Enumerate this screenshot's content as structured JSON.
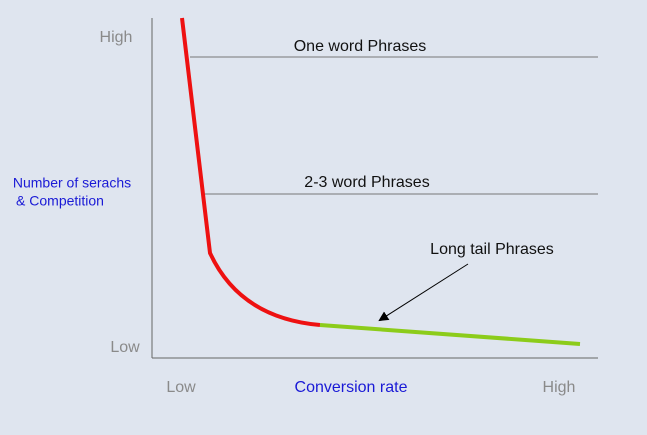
{
  "axes": {
    "y_label_line1": "Number of serachs",
    "y_label_line2": "& Competition",
    "y_high": "High",
    "y_low": "Low",
    "x_label": "Conversion rate",
    "x_low": "Low",
    "x_high": "High"
  },
  "levels": {
    "one_word": "One word Phrases",
    "two_three_word": "2-3 word Phrases",
    "long_tail": "Long tail Phrases"
  }
}
